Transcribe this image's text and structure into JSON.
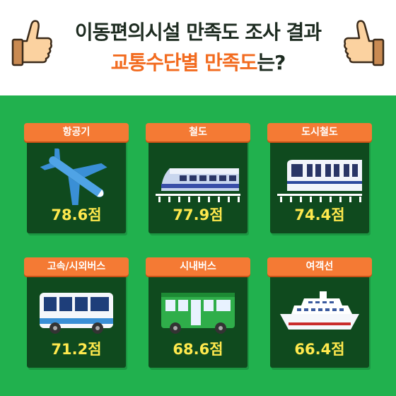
{
  "header": {
    "title_line1": "이동편의시설 만족도 조사 결과",
    "title_line2_highlight": "교통수단별 만족도",
    "title_line2_suffix": "는?"
  },
  "cards": [
    {
      "label": "항공기",
      "score": "78.6점",
      "icon": "airplane-icon"
    },
    {
      "label": "철도",
      "score": "77.9점",
      "icon": "train-icon"
    },
    {
      "label": "도시철도",
      "score": "74.4점",
      "icon": "subway-train-icon"
    },
    {
      "label": "고속/시외버스",
      "score": "71.2점",
      "icon": "coach-bus-icon"
    },
    {
      "label": "시내버스",
      "score": "68.6점",
      "icon": "city-bus-icon"
    },
    {
      "label": "여객선",
      "score": "66.4점",
      "icon": "ferry-ship-icon"
    }
  ],
  "colors": {
    "background": "#21b14e",
    "card": "#0f4a1e",
    "tab": "#f47a34",
    "score": "#ffe94d",
    "title_highlight": "#f26b1f"
  }
}
